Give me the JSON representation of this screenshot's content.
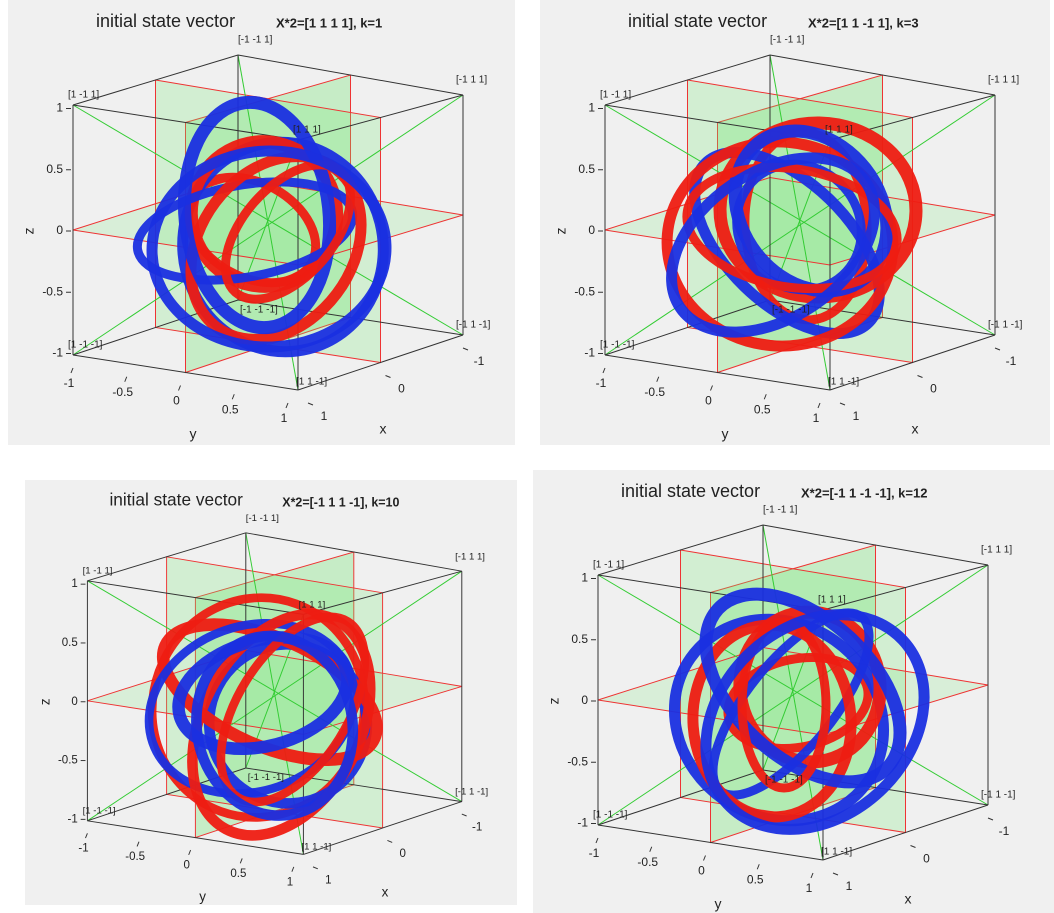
{
  "chart_data": [
    {
      "type": "3d-curves",
      "title": "initial state vector",
      "subtitle": "X*2=[1 1 1 1], k=1",
      "xlabel": "x",
      "ylabel": "y",
      "zlabel": "z",
      "xticks": [
        1,
        0,
        -1
      ],
      "yticks": [
        -1,
        -0.5,
        0,
        0.5,
        1
      ],
      "zticks": [
        -1,
        -0.5,
        0,
        0.5,
        1
      ],
      "corner_labels": [
        "[-1 -1 1]",
        "[-1 1 1]",
        "[1 -1 1]",
        "[1 1 1]",
        "[-1 1 -1]",
        "[1 -1 -1]",
        "[1 1 -1]",
        "[-1 -1 -1]"
      ]
    },
    {
      "type": "3d-curves",
      "title": "initial state vector",
      "subtitle": "X*2=[1 1 -1 1], k=3",
      "xlabel": "x",
      "ylabel": "y",
      "zlabel": "z",
      "xticks": [
        1,
        0,
        -1
      ],
      "yticks": [
        -1,
        -0.5,
        0,
        0.5,
        1
      ],
      "zticks": [
        -1,
        -0.5,
        0,
        0.5,
        1
      ],
      "corner_labels": [
        "[-1 -1 1]",
        "[-1 1 1]",
        "[1 -1 1]",
        "[1 1 1]",
        "[-1 1 -1]",
        "[1 -1 -1]",
        "[1 1 -1]",
        "[-1 -1 -1]"
      ]
    },
    {
      "type": "3d-curves",
      "title": "initial state vector",
      "subtitle": "X*2=[-1 1 1 -1], k=10",
      "xlabel": "x",
      "ylabel": "y",
      "zlabel": "z",
      "xticks": [
        1,
        0,
        -1
      ],
      "yticks": [
        -1,
        -0.5,
        0,
        0.5,
        1
      ],
      "zticks": [
        -1,
        -0.5,
        0,
        0.5,
        1
      ],
      "corner_labels": [
        "[-1 -1 1]",
        "[-1 1 1]",
        "[1 -1 1]",
        "[1 1 1]",
        "[-1 1 -1]",
        "[1 -1 -1]",
        "[1 1 -1]",
        "[-1 -1 -1]"
      ]
    },
    {
      "type": "3d-curves",
      "title": "initial state vector",
      "subtitle": "X*2=[-1 1 -1 -1], k=12",
      "xlabel": "x",
      "ylabel": "y",
      "zlabel": "z",
      "xticks": [
        1,
        0,
        -1
      ],
      "yticks": [
        -1,
        -0.5,
        0,
        0.5,
        1
      ],
      "zticks": [
        -1,
        -0.5,
        0,
        0.5,
        1
      ],
      "corner_labels": [
        "[-1 -1 1]",
        "[-1 1 1]",
        "[1 -1 1]",
        "[1 1 1]",
        "[-1 1 -1]",
        "[1 -1 -1]",
        "[1 1 -1]",
        "[-1 -1 -1]"
      ]
    }
  ]
}
